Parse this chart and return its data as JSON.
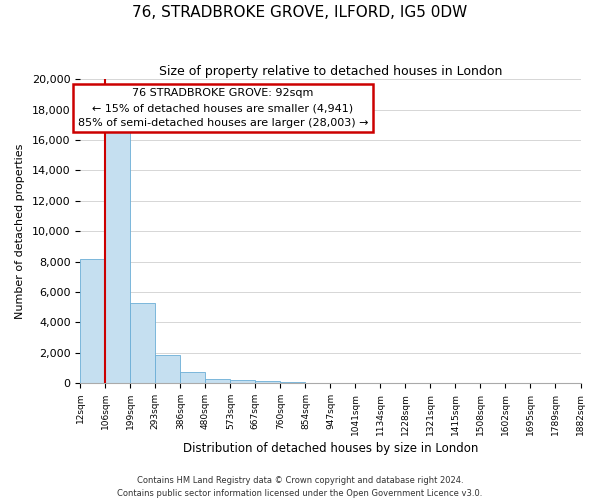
{
  "title": "76, STRADBROKE GROVE, ILFORD, IG5 0DW",
  "subtitle": "Size of property relative to detached houses in London",
  "xlabel": "Distribution of detached houses by size in London",
  "ylabel": "Number of detached properties",
  "bar_values": [
    8200,
    16600,
    5300,
    1850,
    750,
    280,
    220,
    150,
    80,
    40,
    20,
    10,
    5,
    3,
    2,
    1,
    1,
    0,
    0,
    0
  ],
  "tick_labels": [
    "12sqm",
    "106sqm",
    "199sqm",
    "293sqm",
    "386sqm",
    "480sqm",
    "573sqm",
    "667sqm",
    "760sqm",
    "854sqm",
    "947sqm",
    "1041sqm",
    "1134sqm",
    "1228sqm",
    "1321sqm",
    "1415sqm",
    "1508sqm",
    "1602sqm",
    "1695sqm",
    "1789sqm",
    "1882sqm"
  ],
  "bar_color": "#c5dff0",
  "bar_edge_color": "#6baed6",
  "highlight_line_color": "#cc0000",
  "red_line_x": 0.5,
  "ylim": [
    0,
    20000
  ],
  "yticks": [
    0,
    2000,
    4000,
    6000,
    8000,
    10000,
    12000,
    14000,
    16000,
    18000,
    20000
  ],
  "annotation_title": "76 STRADBROKE GROVE: 92sqm",
  "annotation_line1": "← 15% of detached houses are smaller (4,941)",
  "annotation_line2": "85% of semi-detached houses are larger (28,003) →",
  "annotation_box_facecolor": "#ffffff",
  "annotation_box_edgecolor": "#cc0000",
  "footer_line1": "Contains HM Land Registry data © Crown copyright and database right 2024.",
  "footer_line2": "Contains public sector information licensed under the Open Government Licence v3.0."
}
